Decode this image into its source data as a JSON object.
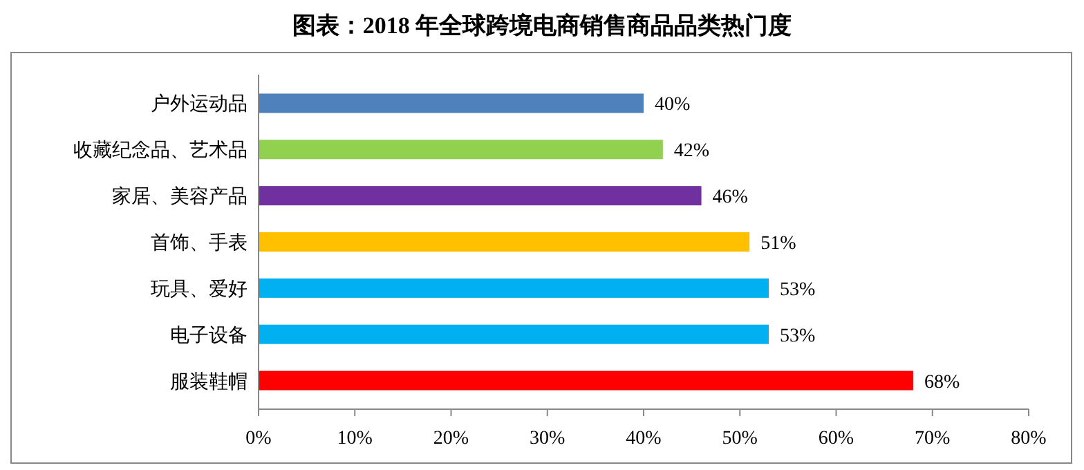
{
  "chart_data": {
    "type": "bar",
    "orientation": "horizontal",
    "title": "图表：2018 年全球跨境电商销售商品品类热门度",
    "categories": [
      "户外运动品",
      "收藏纪念品、艺术品",
      "家居、美容产品",
      "首饰、手表",
      "玩具、爱好",
      "电子设备",
      "服装鞋帽"
    ],
    "values": [
      40,
      42,
      46,
      51,
      53,
      53,
      68
    ],
    "colors": [
      "#4f81bd",
      "#92d050",
      "#7030a0",
      "#ffc000",
      "#00b0f0",
      "#00b0f0",
      "#ff0000"
    ],
    "value_labels": [
      "40%",
      "42%",
      "46%",
      "51%",
      "53%",
      "53%",
      "68%"
    ],
    "xlim": [
      0,
      80
    ],
    "xticks": [
      {
        "value": 0,
        "label": "0%"
      },
      {
        "value": 10,
        "label": "10%"
      },
      {
        "value": 20,
        "label": "20%"
      },
      {
        "value": 30,
        "label": "30%"
      },
      {
        "value": 40,
        "label": "40%"
      },
      {
        "value": 50,
        "label": "50%"
      },
      {
        "value": 60,
        "label": "60%"
      },
      {
        "value": 70,
        "label": "70%"
      },
      {
        "value": 80,
        "label": "80%"
      }
    ],
    "grid": false
  }
}
